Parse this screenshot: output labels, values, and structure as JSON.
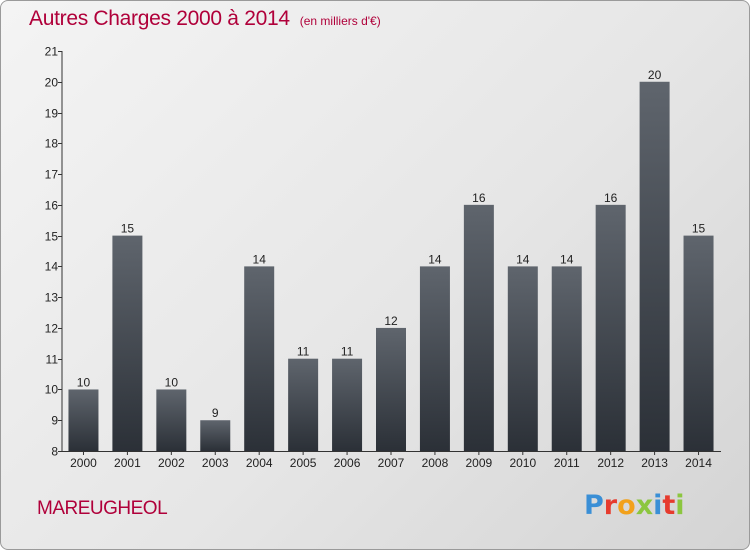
{
  "chart_data": {
    "type": "bar",
    "title": "Autres Charges 2000 à 2014",
    "subtitle": "(en milliers d'€)",
    "categories": [
      "2000",
      "2001",
      "2002",
      "2003",
      "2004",
      "2005",
      "2006",
      "2007",
      "2008",
      "2009",
      "2010",
      "2011",
      "2012",
      "2013",
      "2014"
    ],
    "values": [
      10,
      15,
      10,
      9,
      14,
      11,
      11,
      12,
      14,
      16,
      14,
      14,
      16,
      20,
      15
    ],
    "ylim": [
      8,
      21
    ],
    "yticks": [
      8,
      9,
      10,
      11,
      12,
      13,
      14,
      15,
      16,
      17,
      18,
      19,
      20,
      21
    ],
    "grid": false,
    "bar_color_top": "#5f656d",
    "bar_color_bottom": "#2b3037"
  },
  "footer": {
    "commune": "MAREUGHEOL",
    "logo_text": "Proxiti",
    "logo_colors": [
      "#3a8fd6",
      "#e63b2e",
      "#f2a11b",
      "#8cc63f",
      "#3a8fd6",
      "#e63b2e",
      "#8cc63f"
    ]
  }
}
